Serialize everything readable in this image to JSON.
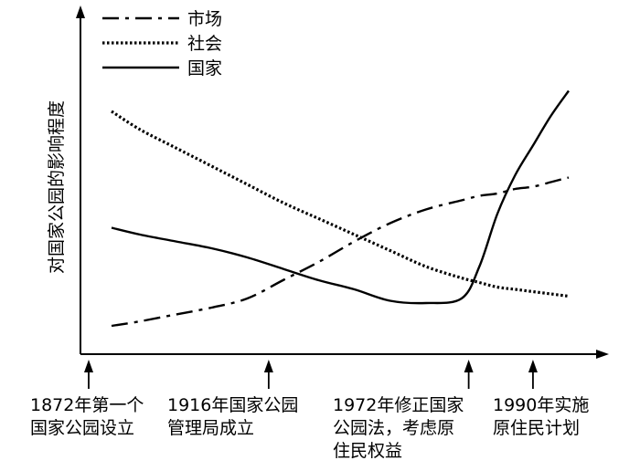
{
  "chart_data": {
    "type": "line",
    "title": "",
    "xlabel": "",
    "ylabel": "对国家公园的影响程度",
    "legend_position": "top-left",
    "grid": false,
    "x": [
      1872,
      1880,
      1890,
      1900,
      1910,
      1920,
      1930,
      1940,
      1950,
      1960,
      1970,
      1975,
      1980,
      1985,
      1990,
      1995,
      2000
    ],
    "series": [
      {
        "name": "市场",
        "style": "dash-dot",
        "values": [
          0.06,
          0.08,
          0.11,
          0.14,
          0.18,
          0.26,
          0.34,
          0.43,
          0.51,
          0.57,
          0.61,
          0.63,
          0.64,
          0.66,
          0.67,
          0.69,
          0.71
        ]
      },
      {
        "name": "社会",
        "style": "dotted",
        "values": [
          1.0,
          0.92,
          0.84,
          0.76,
          0.68,
          0.6,
          0.53,
          0.46,
          0.39,
          0.32,
          0.27,
          0.25,
          0.23,
          0.22,
          0.21,
          0.2,
          0.19
        ]
      },
      {
        "name": "国家",
        "style": "solid",
        "values": [
          0.49,
          0.46,
          0.43,
          0.4,
          0.36,
          0.31,
          0.26,
          0.22,
          0.17,
          0.16,
          0.18,
          0.32,
          0.55,
          0.72,
          0.85,
          0.98,
          1.09
        ]
      }
    ],
    "events": [
      {
        "year": 1872,
        "label_lines": [
          "1872年第一个",
          "国家公园设立"
        ]
      },
      {
        "year": 1916,
        "label_lines": [
          "1916年国家公园",
          "管理局成立"
        ]
      },
      {
        "year": 1972,
        "label_lines": [
          "1972年修正国家",
          "公园法，考虑原",
          "住民权益"
        ]
      },
      {
        "year": 1990,
        "label_lines": [
          "1990年实施",
          "原住民计划"
        ]
      }
    ],
    "colors": {
      "line": "#000000",
      "background": "#ffffff"
    }
  }
}
